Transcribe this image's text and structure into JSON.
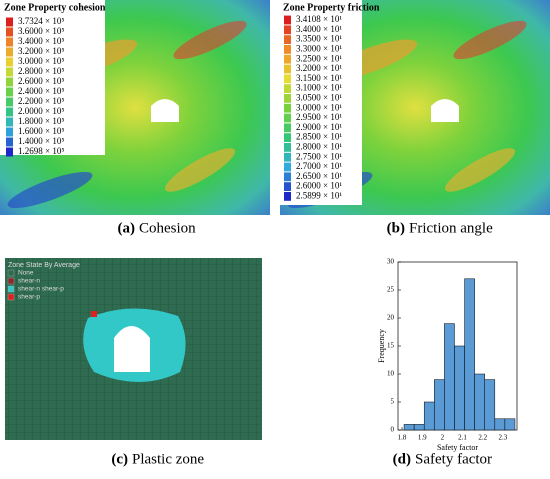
{
  "panel_a": {
    "title": "Zone Property cohesion",
    "legend": [
      "3.7324 × 10⁵",
      "3.6000 × 10⁵",
      "3.4000 × 10⁵",
      "3.2000 × 10⁵",
      "3.0000 × 10⁵",
      "2.8000 × 10⁵",
      "2.6000 × 10⁵",
      "2.4000 × 10⁵",
      "2.2000 × 10⁵",
      "2.0000 × 10⁵",
      "1.8000 × 10⁵",
      "1.6000 × 10⁵",
      "1.4000 × 10⁵",
      "1.2698 × 10⁵"
    ],
    "caption_label": "(a)",
    "caption": "Cohesion"
  },
  "panel_b": {
    "title": "Zone Property friction",
    "legend": [
      "3.4108 × 10¹",
      "3.4000 × 10¹",
      "3.3500 × 10¹",
      "3.3000 × 10¹",
      "3.2500 × 10¹",
      "3.2000 × 10¹",
      "3.1500 × 10¹",
      "3.1000 × 10¹",
      "3.0500 × 10¹",
      "3.0000 × 10¹",
      "2.9500 × 10¹",
      "2.9000 × 10¹",
      "2.8500 × 10¹",
      "2.8000 × 10¹",
      "2.7500 × 10¹",
      "2.7000 × 10¹",
      "2.6500 × 10¹",
      "2.6000 × 10¹",
      "2.5899 × 10¹"
    ],
    "caption_label": "(b)",
    "caption": "Friction angle"
  },
  "panel_c": {
    "title": "Zone State By Average",
    "legend": [
      "None",
      "shear-n",
      "shear-n shear-p",
      "shear-p"
    ],
    "caption_label": "(c)",
    "caption": "Plastic zone"
  },
  "panel_d": {
    "caption_label": "(d)",
    "caption": "Safety factor"
  },
  "chart_data": {
    "type": "histogram",
    "bins": [
      1.81,
      1.86,
      1.91,
      1.96,
      2.01,
      2.06,
      2.11,
      2.16,
      2.21,
      2.26,
      2.31,
      2.36
    ],
    "values": [
      1,
      1,
      5,
      9,
      19,
      15,
      27,
      10,
      9,
      2,
      2
    ],
    "color": "#5b9bd5",
    "x_label": "Safety factor",
    "y_label": "Frequency",
    "xlim": [
      1.78,
      2.37
    ],
    "xticks": [
      1.8,
      1.9,
      2,
      2.1,
      2.2,
      2.3
    ],
    "ylim": [
      0,
      30
    ],
    "yticks": [
      0,
      5,
      10,
      15,
      20,
      25,
      30
    ]
  }
}
